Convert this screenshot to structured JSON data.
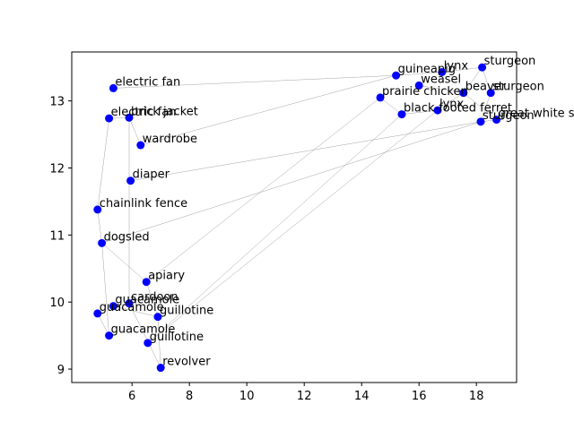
{
  "chart_data": {
    "type": "scatter",
    "title": "",
    "xlabel": "",
    "ylabel": "",
    "xlim": [
      3.9,
      19.4
    ],
    "ylim": [
      8.8,
      13.73
    ],
    "xticks": [
      6,
      8,
      10,
      12,
      14,
      16,
      18
    ],
    "yticks": [
      9,
      10,
      11,
      12,
      13
    ],
    "grid": false,
    "point_color": "#0000ff",
    "edge_color": "#9a9a9a",
    "points": [
      {
        "label": "electric fan",
        "x": 5.35,
        "y": 13.19
      },
      {
        "label": "electric fan",
        "x": 5.2,
        "y": 12.74
      },
      {
        "label": "brick jacket",
        "x": 5.9,
        "y": 12.75
      },
      {
        "label": "wardrobe",
        "x": 6.3,
        "y": 12.34
      },
      {
        "label": "diaper",
        "x": 5.95,
        "y": 11.81
      },
      {
        "label": "chainlink fence",
        "x": 4.8,
        "y": 11.38
      },
      {
        "label": "dogsled",
        "x": 4.95,
        "y": 10.88
      },
      {
        "label": "apiary",
        "x": 6.5,
        "y": 10.3
      },
      {
        "label": "cardoon",
        "x": 5.9,
        "y": 9.98
      },
      {
        "label": "guacamole",
        "x": 5.35,
        "y": 9.94
      },
      {
        "label": "guacamole",
        "x": 4.8,
        "y": 9.83
      },
      {
        "label": "guacamole",
        "x": 5.2,
        "y": 9.5
      },
      {
        "label": "guillotine",
        "x": 6.9,
        "y": 9.78
      },
      {
        "label": "guillotine",
        "x": 6.55,
        "y": 9.39
      },
      {
        "label": "revolver",
        "x": 7.0,
        "y": 9.02
      },
      {
        "label": "guineapig",
        "x": 15.2,
        "y": 13.38
      },
      {
        "label": "lynx",
        "x": 16.8,
        "y": 13.43
      },
      {
        "label": "weasel",
        "x": 16.0,
        "y": 13.23
      },
      {
        "label": "prairie chicken",
        "x": 14.65,
        "y": 13.05
      },
      {
        "label": "black-footed ferret",
        "x": 15.4,
        "y": 12.8
      },
      {
        "label": "lynx",
        "x": 16.65,
        "y": 12.86
      },
      {
        "label": "beaver",
        "x": 17.55,
        "y": 13.12
      },
      {
        "label": "sturgeon",
        "x": 18.2,
        "y": 13.5
      },
      {
        "label": "sturgeon",
        "x": 18.5,
        "y": 13.12
      },
      {
        "label": "sturgeon",
        "x": 18.15,
        "y": 12.69
      },
      {
        "label": "great white shark",
        "x": 18.7,
        "y": 12.72
      }
    ],
    "edges": [
      [
        0,
        15
      ],
      [
        1,
        2
      ],
      [
        2,
        3
      ],
      [
        2,
        8
      ],
      [
        3,
        15
      ],
      [
        4,
        24
      ],
      [
        5,
        1
      ],
      [
        5,
        6
      ],
      [
        6,
        7
      ],
      [
        6,
        11
      ],
      [
        6,
        24
      ],
      [
        7,
        18
      ],
      [
        8,
        9
      ],
      [
        9,
        12
      ],
      [
        10,
        11
      ],
      [
        12,
        7
      ],
      [
        13,
        19
      ],
      [
        14,
        8
      ],
      [
        14,
        12
      ],
      [
        13,
        20
      ],
      [
        15,
        16
      ],
      [
        16,
        22
      ],
      [
        17,
        21
      ],
      [
        18,
        19
      ],
      [
        19,
        20
      ],
      [
        20,
        21
      ],
      [
        21,
        22
      ],
      [
        22,
        23
      ],
      [
        23,
        24
      ],
      [
        24,
        25
      ],
      [
        25,
        21
      ]
    ]
  }
}
